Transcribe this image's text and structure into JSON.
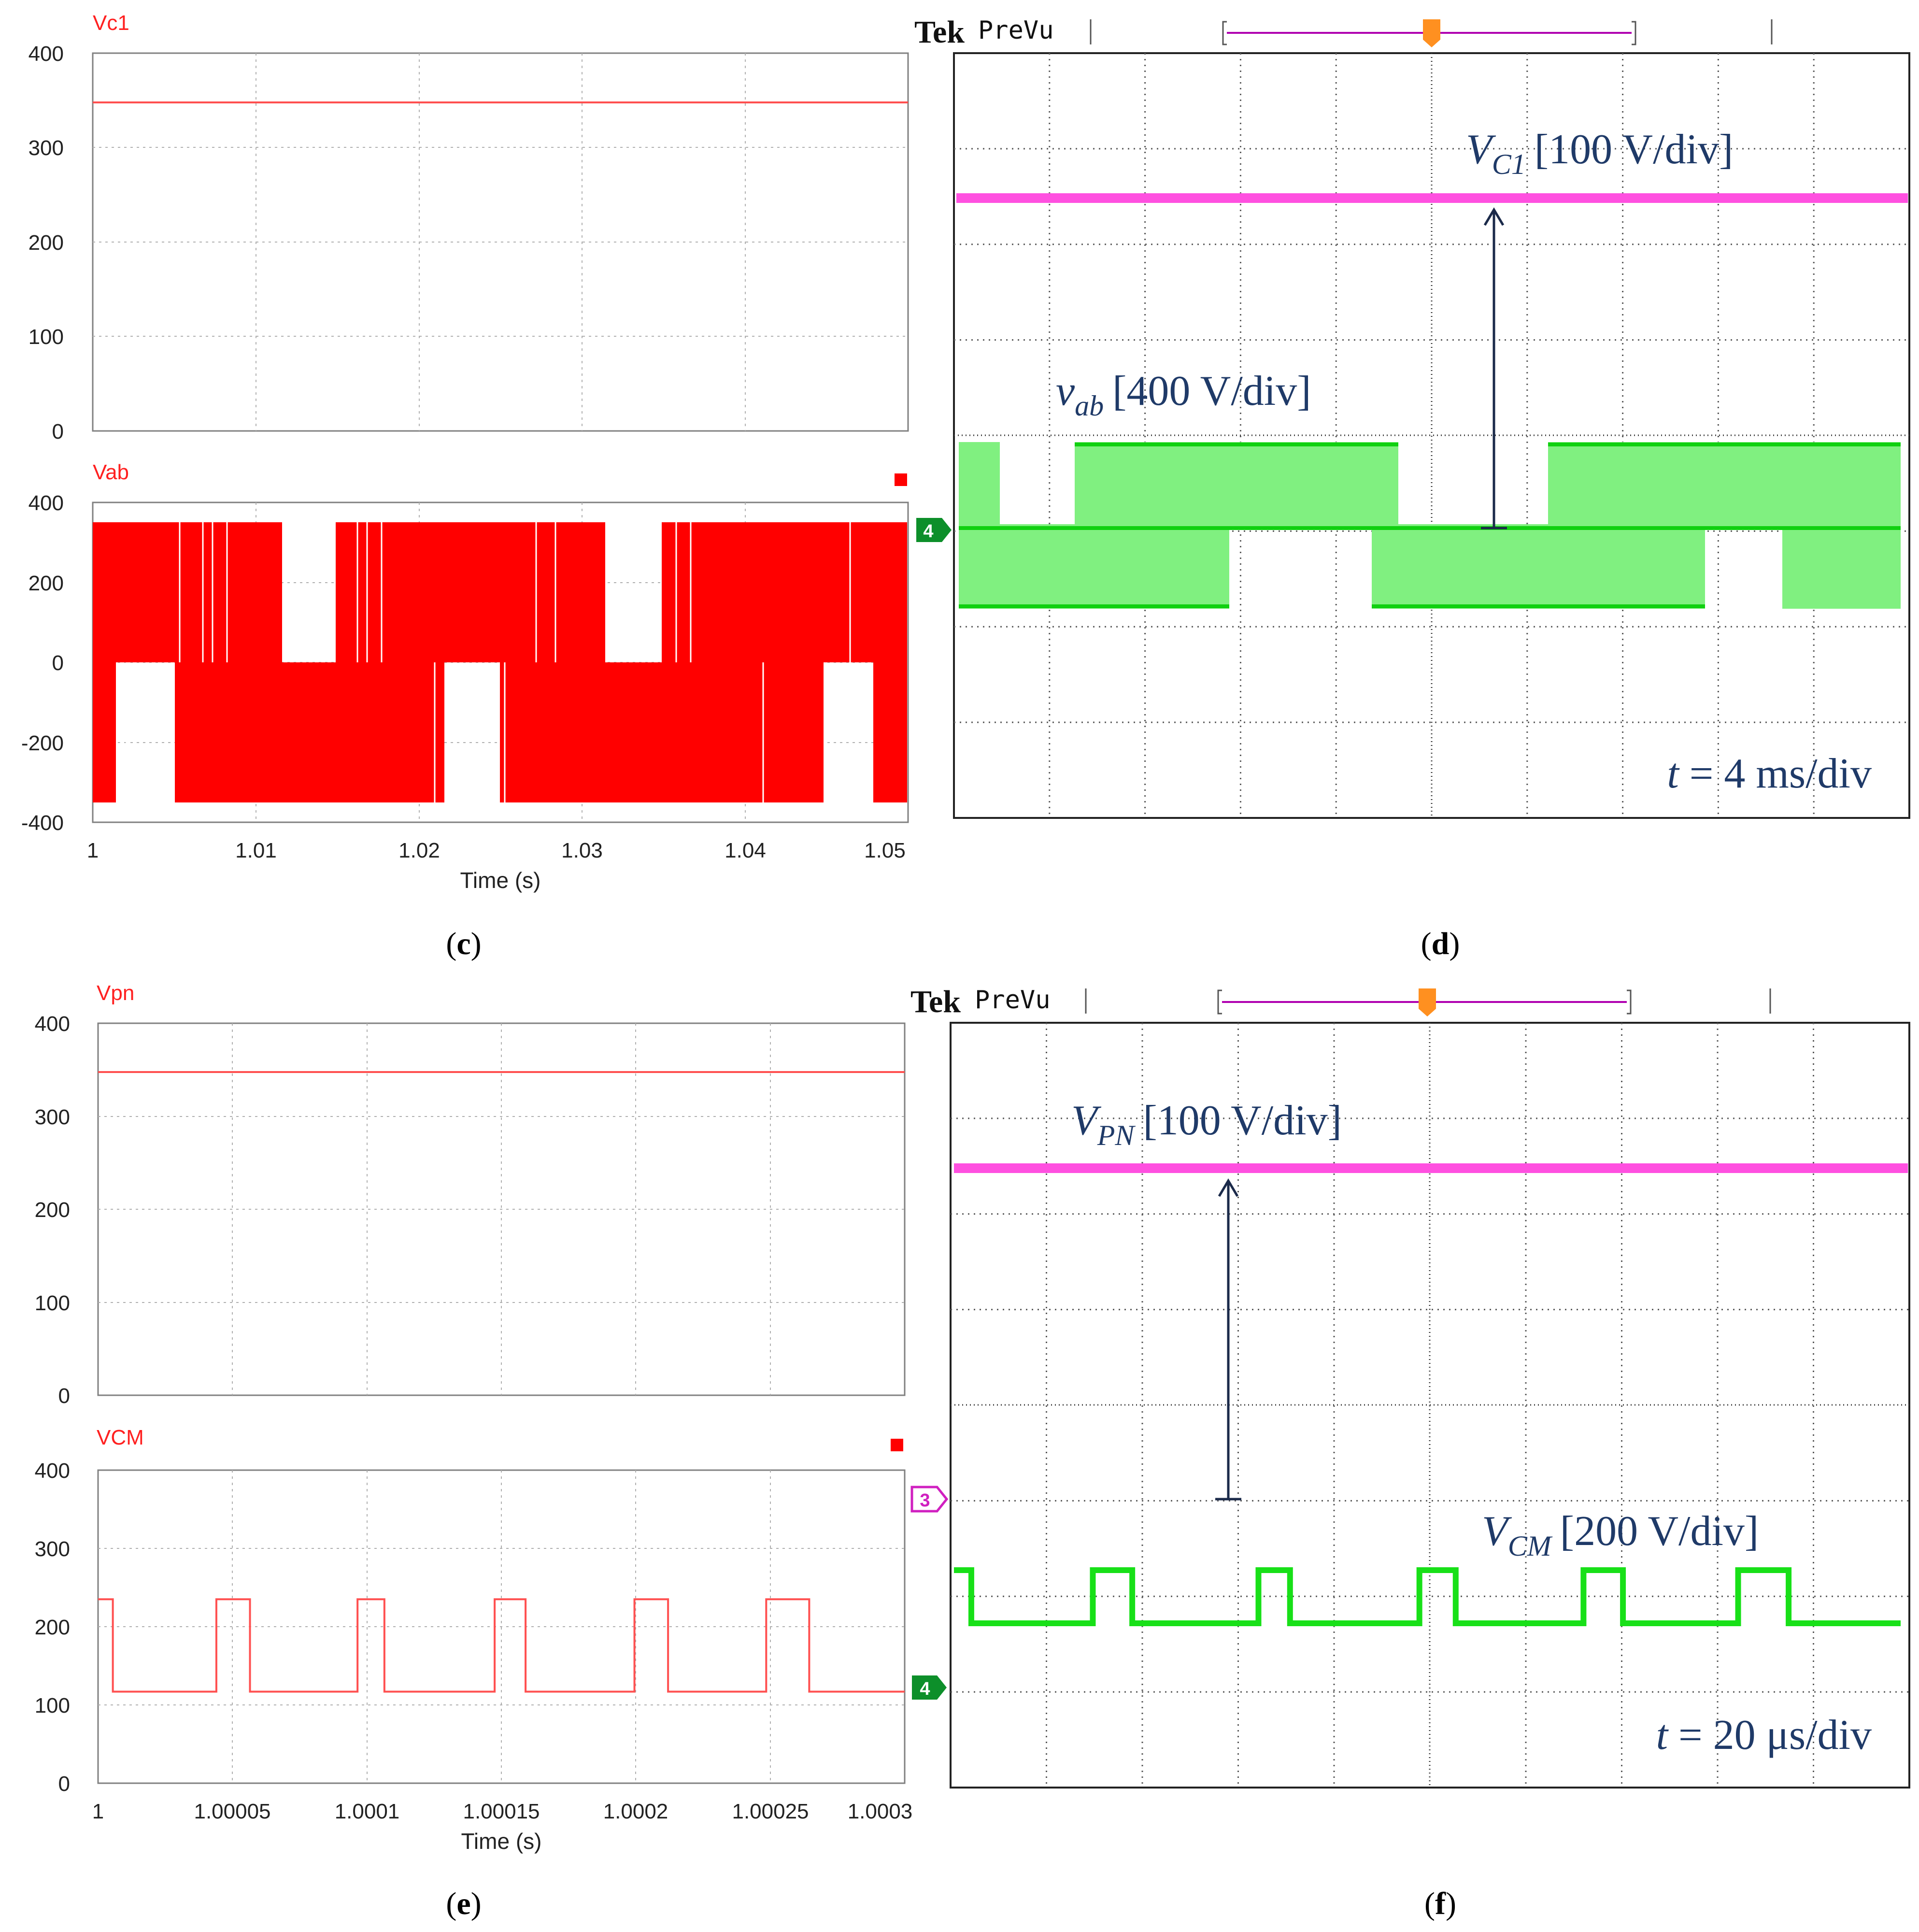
{
  "panels": {
    "c": {
      "caption": "c",
      "xlabel": "Time (s)",
      "xticks": [
        "1",
        "1.01",
        "1.02",
        "1.03",
        "1.04",
        "1.05"
      ],
      "top": {
        "title": "Vc1",
        "yticks": [
          "400",
          "300",
          "200",
          "100",
          "0"
        ]
      },
      "bottom": {
        "title": "Vab",
        "yticks": [
          "400",
          "200",
          "0",
          "-200",
          "-400"
        ]
      }
    },
    "d": {
      "caption": "d",
      "tek_brand": "Tek",
      "tek_mode": "PreVu",
      "trigger_marker": "T",
      "channel_marker": "4",
      "upper_trace": {
        "sym": "V",
        "sub": "C1",
        "scale": "[100 V/div]"
      },
      "lower_trace": {
        "sym": "v",
        "sub": "ab",
        "scale": "[400 V/div]"
      },
      "timebase": {
        "sym": "t",
        "rest": " = 4 ms/div"
      }
    },
    "e": {
      "caption": "e",
      "xlabel": "Time (s)",
      "xticks": [
        "1",
        "1.00005",
        "1.0001",
        "1.00015",
        "1.0002",
        "1.00025",
        "1.0003"
      ],
      "top": {
        "title": "Vpn",
        "yticks": [
          "400",
          "300",
          "200",
          "100",
          "0"
        ]
      },
      "bottom": {
        "title": "VCM",
        "yticks": [
          "400",
          "300",
          "200",
          "100",
          "0"
        ]
      }
    },
    "f": {
      "caption": "f",
      "tek_brand": "Tek",
      "tek_mode": "PreVu",
      "trigger_marker": "T",
      "channel_marker_3": "3",
      "channel_marker_4": "4",
      "upper_trace": {
        "sym": "V",
        "sub": "PN",
        "scale": "[100 V/div]"
      },
      "lower_trace": {
        "sym": "V",
        "sub": "CM",
        "scale": "[200 V/div]"
      },
      "timebase": {
        "sym": "t",
        "rest": " = 20 μs/div"
      }
    }
  },
  "chart_data": [
    {
      "panel": "c-top",
      "type": "line",
      "title": "Vc1",
      "xlabel": "Time (s)",
      "xlim": [
        1.0,
        1.05
      ],
      "ylim": [
        0,
        400
      ],
      "series": [
        {
          "x": [
            1.0,
            1.05
          ],
          "values": [
            350,
            350
          ]
        }
      ],
      "grid": true,
      "color": "#ff4040"
    },
    {
      "panel": "c-bottom",
      "type": "area",
      "title": "Vab",
      "xlabel": "Time (s)",
      "xlim": [
        1.0,
        1.05
      ],
      "ylim": [
        -400,
        400
      ],
      "series": [
        {
          "x": [
            1.0,
            1.05
          ],
          "upper": 350,
          "lower": -350,
          "pwm": true
        }
      ],
      "grid": true,
      "color": "#ff0000"
    },
    {
      "panel": "d",
      "type": "line",
      "xlabel": "t = 4 ms/div",
      "series": [
        {
          "name": "V_C1",
          "scale_v_per_div": 100,
          "level_v": 350
        },
        {
          "name": "v_ab",
          "scale_v_per_div": 400,
          "levels_v": [
            -350,
            0,
            350
          ]
        }
      ]
    },
    {
      "panel": "e-top",
      "type": "line",
      "title": "Vpn",
      "xlabel": "Time (s)",
      "xlim": [
        1.0,
        1.0003
      ],
      "ylim": [
        0,
        400
      ],
      "series": [
        {
          "x": [
            1.0,
            1.0003
          ],
          "values": [
            350,
            350
          ]
        }
      ],
      "grid": true,
      "color": "#ff4040"
    },
    {
      "panel": "e-bottom",
      "type": "line",
      "title": "VCM",
      "xlabel": "Time (s)",
      "xlim": [
        1.0,
        1.0003
      ],
      "ylim": [
        0,
        400
      ],
      "series": [
        {
          "levels": [
            235,
            117
          ],
          "x": [
            1.0,
            1.0000055,
            1.000044,
            1.0000565,
            1.0000965,
            1.0001065,
            1.0001475,
            1.000159,
            1.0001995,
            1.000212,
            1.0002485,
            1.0002645,
            1.0003
          ],
          "values": [
            235,
            117,
            235,
            117,
            235,
            117,
            235,
            117,
            235,
            117,
            235,
            117,
            235
          ]
        }
      ],
      "grid": true,
      "color": "#ff4040"
    },
    {
      "panel": "f",
      "type": "line",
      "xlabel": "t = 20 μs/div",
      "series": [
        {
          "name": "V_PN",
          "scale_v_per_div": 100,
          "level_v": 350
        },
        {
          "name": "V_CM",
          "scale_v_per_div": 200,
          "levels_v": [
            117,
            235
          ]
        }
      ]
    }
  ]
}
